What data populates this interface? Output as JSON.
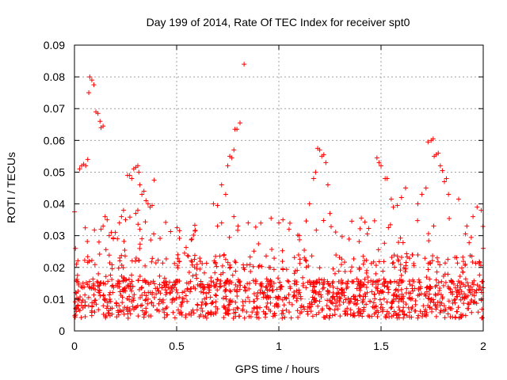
{
  "chart_data": {
    "type": "scatter",
    "title": "Day 199 of 2014, Rate Of TEC Index for receiver spt0",
    "xlabel": "GPS time / hours",
    "ylabel": "ROTI / TECUs",
    "xlim": [
      0,
      2
    ],
    "ylim": [
      0,
      0.09
    ],
    "x_ticks": [
      0,
      0.5,
      1,
      1.5,
      2
    ],
    "x_tick_labels": [
      "0",
      "0.5",
      "1",
      "1.5",
      "2"
    ],
    "y_ticks": [
      0,
      0.01,
      0.02,
      0.03,
      0.04,
      0.05,
      0.06,
      0.07,
      0.08,
      0.09
    ],
    "y_tick_labels": [
      "0",
      "0.01",
      "0.02",
      "0.03",
      "0.04",
      "0.05",
      "0.06",
      "0.07",
      "0.08",
      "0.09"
    ],
    "grid": true,
    "marker": "+",
    "series": [
      {
        "name": "ROTI",
        "color": "#ff0000",
        "points": [
          [
            0.0,
            0.0375
          ],
          [
            0.005,
            0.026
          ],
          [
            0.01,
            0.021
          ],
          [
            0.015,
            0.0175
          ],
          [
            0.02,
            0.0145
          ],
          [
            0.025,
            0.051
          ],
          [
            0.035,
            0.052
          ],
          [
            0.045,
            0.0525
          ],
          [
            0.055,
            0.052
          ],
          [
            0.065,
            0.054
          ],
          [
            0.07,
            0.075
          ],
          [
            0.075,
            0.08
          ],
          [
            0.085,
            0.079
          ],
          [
            0.095,
            0.0775
          ],
          [
            0.105,
            0.069
          ],
          [
            0.115,
            0.0685
          ],
          [
            0.125,
            0.066
          ],
          [
            0.13,
            0.064
          ],
          [
            0.14,
            0.0645
          ],
          [
            0.12,
            0.028
          ],
          [
            0.13,
            0.032
          ],
          [
            0.14,
            0.033
          ],
          [
            0.15,
            0.036
          ],
          [
            0.16,
            0.035
          ],
          [
            0.17,
            0.03
          ],
          [
            0.18,
            0.031
          ],
          [
            0.19,
            0.029
          ],
          [
            0.2,
            0.031
          ],
          [
            0.21,
            0.029
          ],
          [
            0.22,
            0.034
          ],
          [
            0.23,
            0.036
          ],
          [
            0.24,
            0.038
          ],
          [
            0.25,
            0.035
          ],
          [
            0.26,
            0.049
          ],
          [
            0.27,
            0.049
          ],
          [
            0.28,
            0.048
          ],
          [
            0.29,
            0.051
          ],
          [
            0.3,
            0.0515
          ],
          [
            0.31,
            0.052
          ],
          [
            0.315,
            0.05
          ],
          [
            0.32,
            0.046
          ],
          [
            0.33,
            0.043
          ],
          [
            0.34,
            0.044
          ],
          [
            0.35,
            0.041
          ],
          [
            0.36,
            0.04
          ],
          [
            0.37,
            0.039
          ],
          [
            0.38,
            0.0395
          ],
          [
            0.39,
            0.0475
          ],
          [
            0.3,
            0.037
          ],
          [
            0.31,
            0.038
          ],
          [
            0.32,
            0.032
          ],
          [
            0.33,
            0.029
          ],
          [
            0.68,
            0.04
          ],
          [
            0.7,
            0.0395
          ],
          [
            0.72,
            0.046
          ],
          [
            0.74,
            0.043
          ],
          [
            0.75,
            0.052
          ],
          [
            0.76,
            0.055
          ],
          [
            0.77,
            0.0545
          ],
          [
            0.78,
            0.057
          ],
          [
            0.785,
            0.0635
          ],
          [
            0.795,
            0.0635
          ],
          [
            0.81,
            0.0655
          ],
          [
            0.83,
            0.084
          ],
          [
            0.7,
            0.033
          ],
          [
            0.72,
            0.034
          ],
          [
            0.78,
            0.036
          ],
          [
            0.8,
            0.033
          ],
          [
            0.85,
            0.034
          ],
          [
            1.0,
            0.034
          ],
          [
            1.02,
            0.035
          ],
          [
            1.05,
            0.032
          ],
          [
            1.1,
            0.03
          ],
          [
            1.15,
            0.04
          ],
          [
            1.17,
            0.048
          ],
          [
            1.18,
            0.05
          ],
          [
            1.19,
            0.0575
          ],
          [
            1.2,
            0.057
          ],
          [
            1.21,
            0.055
          ],
          [
            1.22,
            0.0555
          ],
          [
            1.23,
            0.053
          ],
          [
            1.24,
            0.046
          ],
          [
            1.25,
            0.037
          ],
          [
            1.48,
            0.0545
          ],
          [
            1.49,
            0.053
          ],
          [
            1.5,
            0.052
          ],
          [
            1.52,
            0.048
          ],
          [
            1.53,
            0.048
          ],
          [
            1.55,
            0.0415
          ],
          [
            1.56,
            0.039
          ],
          [
            1.58,
            0.0395
          ],
          [
            1.6,
            0.042
          ],
          [
            1.62,
            0.045
          ],
          [
            1.68,
            0.04
          ],
          [
            1.7,
            0.043
          ],
          [
            1.72,
            0.045
          ],
          [
            1.73,
            0.0595
          ],
          [
            1.745,
            0.06
          ],
          [
            1.755,
            0.0605
          ],
          [
            1.76,
            0.055
          ],
          [
            1.77,
            0.0555
          ],
          [
            1.78,
            0.056
          ],
          [
            1.79,
            0.052
          ],
          [
            1.8,
            0.0505
          ],
          [
            1.81,
            0.047
          ],
          [
            1.82,
            0.048
          ],
          [
            1.83,
            0.043
          ],
          [
            1.88,
            0.0415
          ],
          [
            1.92,
            0.033
          ],
          [
            1.95,
            0.036
          ],
          [
            1.97,
            0.039
          ],
          [
            1.99,
            0.038
          ],
          [
            2.0,
            0.026
          ]
        ]
      }
    ]
  }
}
